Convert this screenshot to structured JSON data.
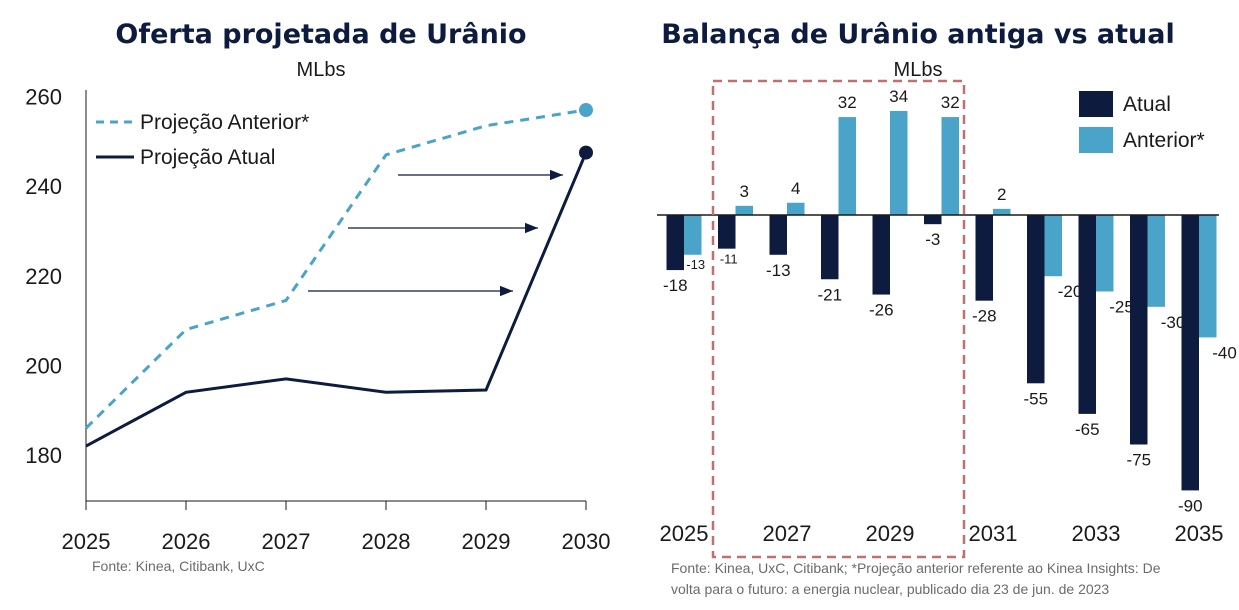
{
  "chart_data": [
    {
      "type": "line",
      "title": "Oferta projetada de Urânio",
      "subtitle": "MLbs",
      "x": [
        2025,
        2026,
        2027,
        2028,
        2029,
        2030
      ],
      "x_tick_labels": [
        "2025",
        "2026",
        "2027",
        "2028",
        "2029",
        "2030"
      ],
      "y_tick_labels": [
        "180",
        "200",
        "220",
        "240",
        "260"
      ],
      "ylim": [
        170,
        265
      ],
      "grid": false,
      "legend_position": "top-left",
      "series": [
        {
          "name": "Projeção Anterior*",
          "style": "dashed",
          "color": "#4aa3c8",
          "values": [
            186,
            208,
            214.5,
            247,
            253.5,
            257
          ]
        },
        {
          "name": "Projeção Atual",
          "style": "solid",
          "color": "#0d1b3e",
          "values": [
            182,
            194,
            197,
            194,
            194.5,
            247.5
          ]
        }
      ],
      "annotations": [
        "arrows indicating shift from previous to current projection"
      ],
      "source": "Fonte: Kinea, Citibank, UxC"
    },
    {
      "type": "bar",
      "title": "Balança de Urânio antiga vs atual",
      "subtitle": "MLbs",
      "categories": [
        2025,
        2026,
        2027,
        2028,
        2029,
        2030,
        2031,
        2032,
        2033,
        2034,
        2035
      ],
      "x_tick_labels": [
        "2025",
        "2027",
        "2029",
        "2031",
        "2033",
        "2035"
      ],
      "grid": false,
      "legend_position": "top-right",
      "series": [
        {
          "name": "Atual",
          "color": "#0d1b3e",
          "values": [
            -18,
            -11,
            -13,
            -21,
            -26,
            -3,
            -28,
            -55,
            -65,
            -75,
            -90
          ],
          "labels": [
            "-18",
            "-11",
            "-13",
            "-21",
            "-26",
            "-3",
            "-28",
            "-55",
            "-65",
            "-75",
            "-90"
          ]
        },
        {
          "name": "Anterior*",
          "color": "#4aa3c8",
          "values": [
            -13,
            3,
            4,
            32,
            34,
            32,
            2,
            -20,
            -25,
            -30,
            -40
          ],
          "labels": [
            "-13",
            "3",
            "4",
            "32",
            "34",
            "32",
            "2",
            "-20",
            "-25",
            "-30",
            "-40"
          ]
        }
      ],
      "highlight_box": "2026-2030",
      "source": "Fonte: Kinea, UxC, Citibank; *Projeção anterior referente ao Kinea Insights: De volta para o futuro: a energia nuclear, publicado dia 23 de jun. de 2023"
    }
  ],
  "footnote_right_line1": "Fonte: Kinea, UxC, Citibank; *Projeção anterior referente ao Kinea Insights: De",
  "footnote_right_line2": "volta para o futuro: a energia nuclear, publicado dia 23 de jun. de 2023",
  "colors": {
    "dark": "#0d1b3e",
    "light": "#4aa3c8",
    "highlight": "#c0706f"
  }
}
